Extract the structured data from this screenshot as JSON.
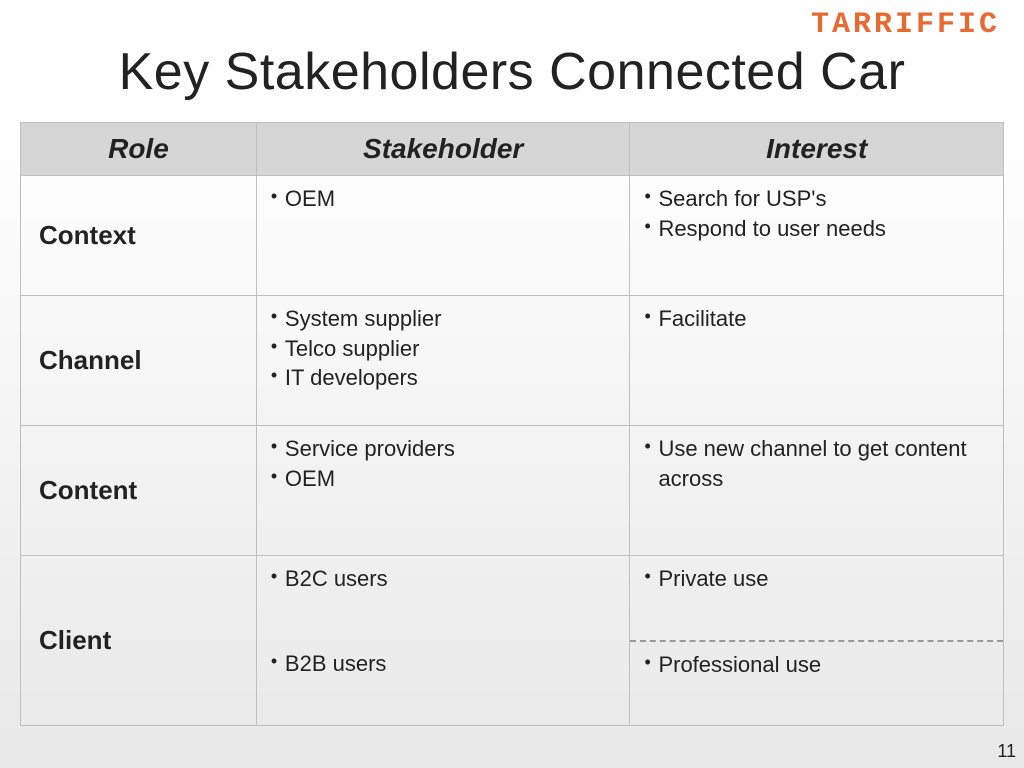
{
  "brand": {
    "text": "TARRIFFIC",
    "color": "#e86a33"
  },
  "title": "Key Stakeholders Connected Car",
  "page_number": "11",
  "table": {
    "columns": [
      "Role",
      "Stakeholder",
      "Interest"
    ],
    "column_widths_pct": [
      24,
      38,
      38
    ],
    "header_bg": "#d6d6d6",
    "border_color": "#bfbfbf",
    "header_fontsize_pt": 21,
    "cell_fontsize_pt": 17,
    "role_fontsize_pt": 20,
    "rows": [
      {
        "role": "Context",
        "stakeholders": [
          "OEM"
        ],
        "interests": [
          "Search for USP's",
          "Respond to user needs"
        ]
      },
      {
        "role": "Channel",
        "stakeholders": [
          "System supplier",
          "Telco supplier",
          "IT developers"
        ],
        "interests": [
          "Facilitate"
        ]
      },
      {
        "role": "Content",
        "stakeholders": [
          "Service providers",
          "OEM"
        ],
        "interests": [
          "Use new channel to get content across"
        ]
      },
      {
        "role": "Client",
        "split": true,
        "top": {
          "stakeholders": [
            "B2C users"
          ],
          "interests": [
            "Private use"
          ]
        },
        "bottom": {
          "stakeholders": [
            "B2B users"
          ],
          "interests": [
            "Professional use"
          ]
        },
        "divider_style": "dashed",
        "divider_color": "#9a9a9a"
      }
    ]
  },
  "typography": {
    "title_fontsize_pt": 39,
    "brand_fontsize_pt": 22,
    "font_family": "Lucida Sans"
  },
  "background": {
    "top": "#ffffff",
    "bottom": "#e8e8e8"
  }
}
